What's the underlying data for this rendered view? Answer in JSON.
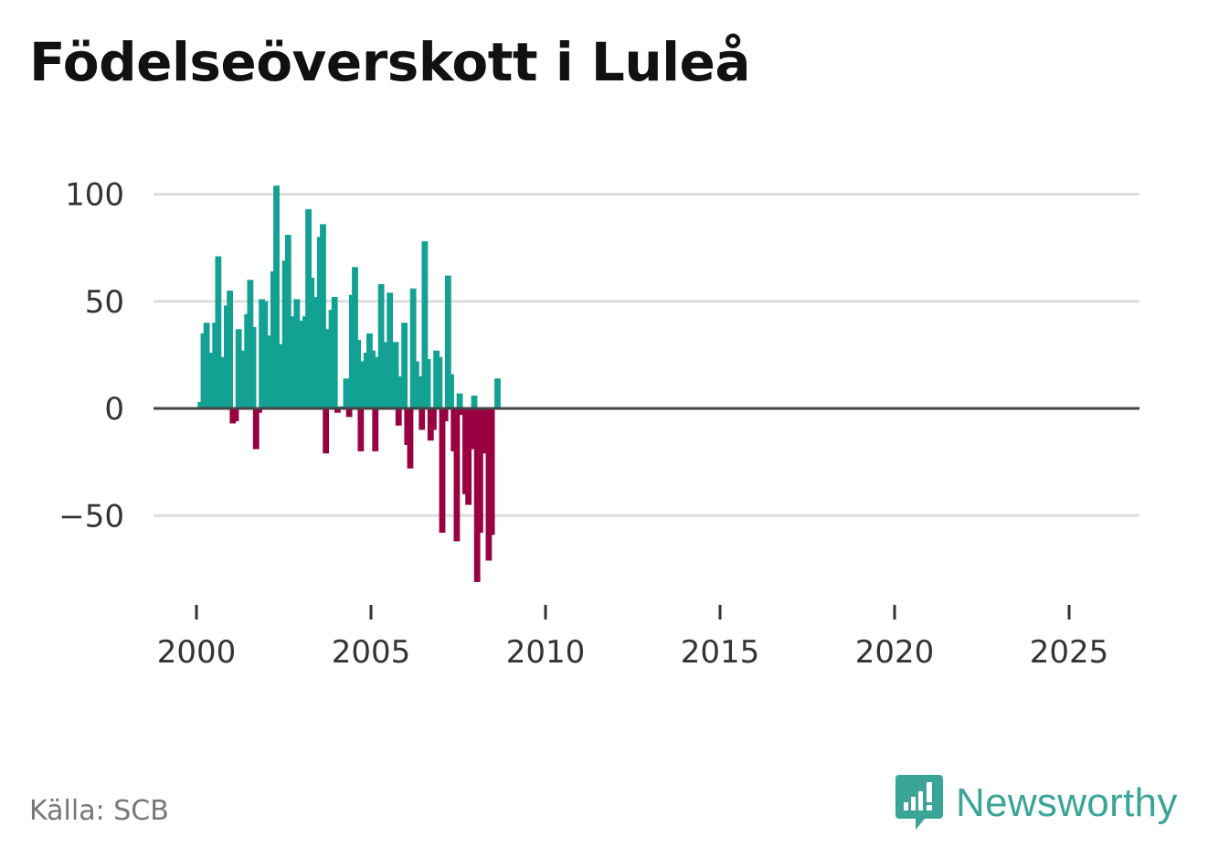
{
  "title": "Födelseöverskott i Luleå",
  "source": "Källa: SCB",
  "brand": {
    "name": "Newsworthy",
    "icon": "newsworthy-logo-icon"
  },
  "colors": {
    "positive": "#12a193",
    "negative": "#990041",
    "zero_line": "#444444",
    "grid": "#dddddd",
    "brand": "#3aa597"
  },
  "chart_data": {
    "type": "bar",
    "title": "Födelseöverskott i Luleå",
    "xlabel": "",
    "ylabel": "",
    "xlim": [
      1999.0,
      2027.0
    ],
    "ylim": [
      -85,
      105
    ],
    "yticks": [
      100,
      50,
      0,
      -50
    ],
    "ytick_labels": [
      "100",
      "50",
      "0",
      "−50"
    ],
    "xticks": [
      2000,
      2005,
      2010,
      2015,
      2020,
      2025
    ],
    "xtick_labels": [
      "2000",
      "2005",
      "2010",
      "2015",
      "2020",
      "2025"
    ],
    "frequency": "monthly (Jan 2000 – Oct 2025, x = year + (month−1)/12)",
    "start_year": 2000,
    "values": [
      0,
      3,
      35,
      40,
      24,
      26,
      40,
      71,
      8,
      24,
      48,
      55,
      -7,
      -6,
      37,
      27,
      7,
      44,
      60,
      38,
      -19,
      -2,
      51,
      50,
      22,
      34,
      64,
      104,
      4,
      30,
      69,
      81,
      28,
      43,
      51,
      41,
      0,
      43,
      93,
      61,
      52,
      28,
      80,
      86,
      -21,
      37,
      46,
      52,
      -2,
      1,
      0,
      14,
      -4,
      53,
      66,
      32,
      -20,
      22,
      26,
      35,
      27,
      -20,
      24,
      58,
      14,
      31,
      54,
      26,
      31,
      -8,
      15,
      40,
      -17,
      -28,
      56,
      22,
      15,
      -10,
      78,
      23,
      -15,
      -10,
      27,
      24,
      -58,
      -6,
      62,
      16,
      -20,
      -62,
      7,
      -3,
      -40,
      -45,
      -19,
      6,
      -81,
      -58,
      -11,
      -21,
      -71,
      -59,
      0,
      14
    ]
  }
}
